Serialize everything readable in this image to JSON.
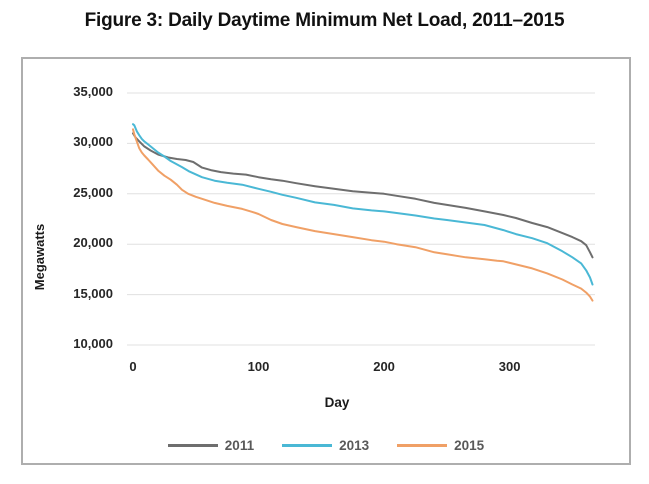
{
  "figure": {
    "title": "Figure 3: Daily Daytime Minimum Net Load, 2011–2015"
  },
  "chart_data": {
    "type": "line",
    "title": "Figure 3: Daily Daytime Minimum Net Load, 2011–2015",
    "xlabel": "Day",
    "ylabel": "Megawatts",
    "xlim": [
      0,
      368
    ],
    "ylim": [
      10000,
      35000
    ],
    "x_ticks": [
      0,
      100,
      200,
      300
    ],
    "y_ticks": [
      35000,
      30000,
      25000,
      20000,
      15000,
      10000
    ],
    "y_tick_labels": [
      "35,000",
      "30,000",
      "25,000",
      "20,000",
      "15,000",
      "10,000"
    ],
    "grid": "horizontal",
    "gridline_color": "#e0e0e0",
    "frame_border_color": "#aeaeae",
    "legend_position": "bottom",
    "series": [
      {
        "name": "2011",
        "color": "#6e6e6e",
        "points": [
          [
            0,
            31000
          ],
          [
            2,
            30600
          ],
          [
            5,
            30200
          ],
          [
            9,
            29700
          ],
          [
            14,
            29300
          ],
          [
            20,
            28900
          ],
          [
            28,
            28600
          ],
          [
            35,
            28450
          ],
          [
            42,
            28350
          ],
          [
            48,
            28150
          ],
          [
            55,
            27600
          ],
          [
            62,
            27350
          ],
          [
            70,
            27150
          ],
          [
            80,
            27000
          ],
          [
            90,
            26900
          ],
          [
            100,
            26650
          ],
          [
            110,
            26450
          ],
          [
            119,
            26300
          ],
          [
            130,
            26050
          ],
          [
            145,
            25750
          ],
          [
            160,
            25500
          ],
          [
            175,
            25250
          ],
          [
            200,
            25000
          ],
          [
            210,
            24800
          ],
          [
            225,
            24500
          ],
          [
            240,
            24100
          ],
          [
            250,
            23900
          ],
          [
            265,
            23600
          ],
          [
            280,
            23250
          ],
          [
            295,
            22900
          ],
          [
            305,
            22600
          ],
          [
            318,
            22100
          ],
          [
            330,
            21700
          ],
          [
            342,
            21100
          ],
          [
            350,
            20700
          ],
          [
            357,
            20300
          ],
          [
            361,
            19900
          ],
          [
            364,
            19200
          ],
          [
            366,
            18700
          ]
        ]
      },
      {
        "name": "2013",
        "color": "#4ab8d5",
        "points": [
          [
            0,
            31900
          ],
          [
            1,
            31800
          ],
          [
            3,
            31200
          ],
          [
            5,
            30800
          ],
          [
            7,
            30450
          ],
          [
            9,
            30200
          ],
          [
            12,
            29900
          ],
          [
            15,
            29600
          ],
          [
            20,
            29100
          ],
          [
            25,
            28700
          ],
          [
            30,
            28250
          ],
          [
            39,
            27650
          ],
          [
            45,
            27200
          ],
          [
            55,
            26650
          ],
          [
            65,
            26300
          ],
          [
            75,
            26100
          ],
          [
            87,
            25900
          ],
          [
            100,
            25500
          ],
          [
            110,
            25200
          ],
          [
            119,
            24900
          ],
          [
            130,
            24600
          ],
          [
            145,
            24150
          ],
          [
            160,
            23900
          ],
          [
            175,
            23550
          ],
          [
            190,
            23350
          ],
          [
            200,
            23250
          ],
          [
            210,
            23100
          ],
          [
            225,
            22850
          ],
          [
            240,
            22550
          ],
          [
            250,
            22400
          ],
          [
            265,
            22150
          ],
          [
            280,
            21900
          ],
          [
            295,
            21400
          ],
          [
            305,
            21000
          ],
          [
            318,
            20600
          ],
          [
            330,
            20100
          ],
          [
            342,
            19300
          ],
          [
            350,
            18700
          ],
          [
            357,
            18100
          ],
          [
            361,
            17400
          ],
          [
            364,
            16700
          ],
          [
            366,
            16000
          ]
        ]
      },
      {
        "name": "2015",
        "color": "#f0a066",
        "points": [
          [
            0,
            31400
          ],
          [
            1,
            30900
          ],
          [
            3,
            30200
          ],
          [
            5,
            29500
          ],
          [
            7,
            29100
          ],
          [
            9,
            28800
          ],
          [
            12,
            28400
          ],
          [
            15,
            28000
          ],
          [
            20,
            27300
          ],
          [
            25,
            26800
          ],
          [
            30,
            26400
          ],
          [
            35,
            25900
          ],
          [
            39,
            25400
          ],
          [
            44,
            25000
          ],
          [
            50,
            24700
          ],
          [
            55,
            24500
          ],
          [
            65,
            24100
          ],
          [
            75,
            23800
          ],
          [
            87,
            23500
          ],
          [
            95,
            23200
          ],
          [
            100,
            23000
          ],
          [
            110,
            22400
          ],
          [
            119,
            22000
          ],
          [
            130,
            21700
          ],
          [
            145,
            21300
          ],
          [
            160,
            21000
          ],
          [
            175,
            20700
          ],
          [
            190,
            20400
          ],
          [
            200,
            20250
          ],
          [
            210,
            20000
          ],
          [
            225,
            19700
          ],
          [
            240,
            19200
          ],
          [
            250,
            19000
          ],
          [
            265,
            18700
          ],
          [
            280,
            18500
          ],
          [
            290,
            18350
          ],
          [
            295,
            18300
          ],
          [
            305,
            18000
          ],
          [
            318,
            17600
          ],
          [
            330,
            17100
          ],
          [
            342,
            16500
          ],
          [
            350,
            16000
          ],
          [
            357,
            15600
          ],
          [
            361,
            15200
          ],
          [
            364,
            14800
          ],
          [
            366,
            14400
          ]
        ]
      }
    ]
  }
}
